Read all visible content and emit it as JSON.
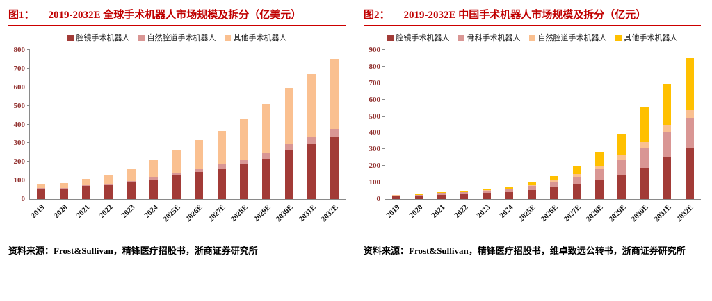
{
  "panels": [
    {
      "tag": "图1：",
      "title": "2019-2032E 全球手术机器人市场规模及拆分（亿美元）",
      "source": "资料来源：Frost&Sullivan，精锋医疗招股书，浙商证券研究所"
    },
    {
      "tag": "图2：",
      "title": "2019-2032E 中国手术机器人市场规模及拆分（亿元）",
      "source": "资料来源：Frost&Sullivan，精锋医疗招股书，维卓致远公转书，浙商证券研究所"
    }
  ],
  "colors": {
    "title_red": "#c00000",
    "axis_label_red": "#943634",
    "bar_dark_red": "#a23b37",
    "bar_rose": "#d99694",
    "bar_peach": "#fac090",
    "bar_gold": "#ffc000"
  },
  "chart_data": [
    {
      "type": "bar",
      "stacked": true,
      "title": "2019-2032E 全球手术机器人市场规模及拆分（亿美元）",
      "categories": [
        "2019",
        "2020",
        "2021",
        "2022",
        "2023",
        "2024",
        "2025E",
        "2026E",
        "2027E",
        "2028E",
        "2029E",
        "2030E",
        "2031E",
        "2032E"
      ],
      "series": [
        {
          "name": "腔镜手术机器人",
          "color": "#a23b37",
          "values": [
            55,
            55,
            70,
            75,
            88,
            105,
            125,
            145,
            165,
            185,
            215,
            260,
            295,
            330
          ]
        },
        {
          "name": "自然腔道手术机器人",
          "color": "#d99694",
          "values": [
            5,
            5,
            6,
            8,
            10,
            13,
            15,
            18,
            22,
            26,
            32,
            36,
            40,
            45
          ]
        },
        {
          "name": "其他手术机器人",
          "color": "#fac090",
          "values": [
            20,
            25,
            34,
            47,
            67,
            92,
            125,
            152,
            178,
            219,
            263,
            299,
            335,
            375
          ]
        }
      ],
      "totals": [
        80,
        85,
        110,
        130,
        165,
        210,
        265,
        315,
        365,
        430,
        510,
        595,
        670,
        750
      ],
      "xlabel": "",
      "ylabel": "",
      "ylim": [
        0,
        800
      ],
      "ytick_step": 100,
      "grid": false,
      "legend_position": "top"
    },
    {
      "type": "bar",
      "stacked": true,
      "title": "2019-2032E 中国手术机器人市场规模及拆分（亿元）",
      "categories": [
        "2019",
        "2020",
        "2021",
        "2022",
        "2023",
        "2024",
        "2025E",
        "2026E",
        "2027E",
        "2028E",
        "2029E",
        "2030E",
        "2031E",
        "2032E"
      ],
      "series": [
        {
          "name": "腔镜手术机器人",
          "color": "#a23b37",
          "values": [
            17,
            18,
            25,
            29,
            35,
            42,
            55,
            70,
            90,
            115,
            145,
            190,
            255,
            310
          ]
        },
        {
          "name": "骨科手术机器人",
          "color": "#d99694",
          "values": [
            6,
            7,
            10,
            12,
            15,
            18,
            25,
            32,
            45,
            65,
            90,
            115,
            150,
            180
          ]
        },
        {
          "name": "自然腔道手术机器人",
          "color": "#fac090",
          "values": [
            1,
            1,
            2,
            2,
            3,
            4,
            6,
            10,
            15,
            20,
            28,
            38,
            42,
            50
          ]
        },
        {
          "name": "其他手术机器人",
          "color": "#ffc000",
          "values": [
            3,
            4,
            5,
            7,
            9,
            12,
            19,
            28,
            50,
            85,
            132,
            212,
            248,
            310
          ]
        }
      ],
      "totals": [
        27,
        30,
        42,
        50,
        62,
        76,
        105,
        140,
        200,
        285,
        395,
        555,
        695,
        850
      ],
      "xlabel": "",
      "ylabel": "",
      "ylim": [
        0,
        900
      ],
      "ytick_step": 100,
      "grid": false,
      "legend_position": "top"
    }
  ]
}
